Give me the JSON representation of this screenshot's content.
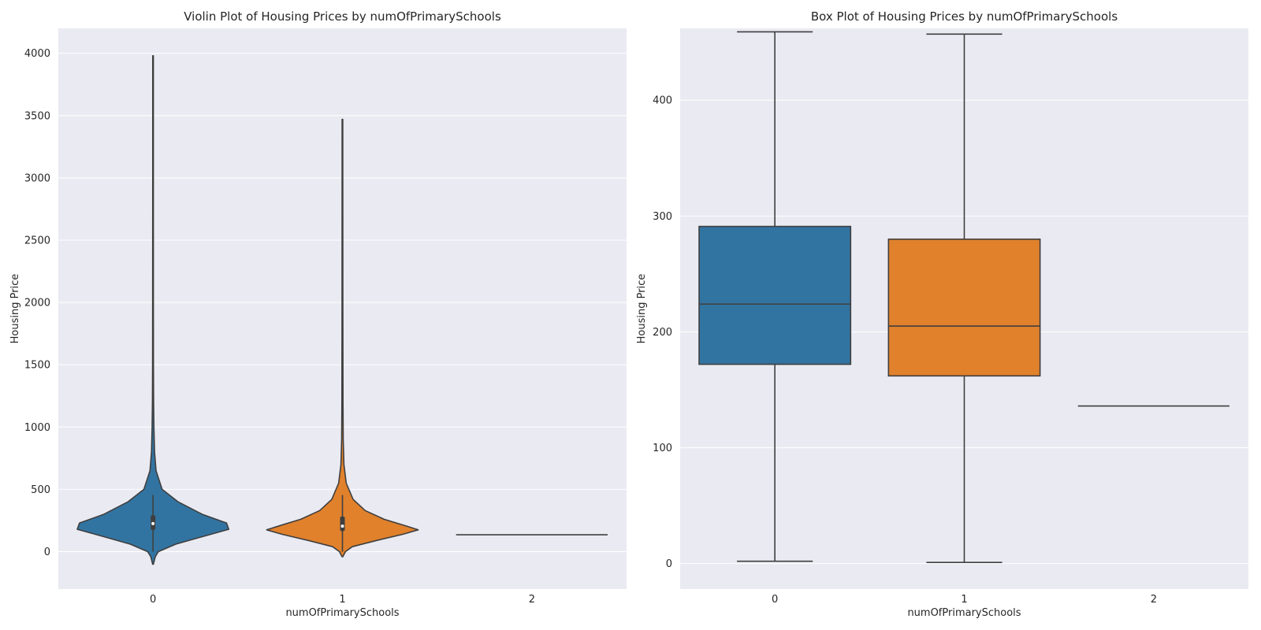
{
  "chart_data": [
    {
      "type": "violin",
      "title": "Violin Plot of Housing Prices by numOfPrimarySchools",
      "xlabel": "numOfPrimarySchools",
      "ylabel": "Housing Price",
      "categories": [
        "0",
        "1",
        "2"
      ],
      "ylim": [
        -300,
        4200
      ],
      "yticks": [
        "0",
        "500",
        "1000",
        "1500",
        "2000",
        "2500",
        "3000",
        "3500",
        "4000"
      ],
      "grid": true,
      "colors": [
        "#3274a1",
        "#e1812c",
        "#3a923a"
      ],
      "violins": [
        {
          "category": "0",
          "min": -100,
          "max": 3980,
          "q1": 175,
          "median": 225,
          "q3": 292,
          "whisker_low": 0,
          "whisker_high": 455,
          "density": [
            [
              -100,
              0.005
            ],
            [
              -40,
              0.03
            ],
            [
              0,
              0.07
            ],
            [
              60,
              0.3
            ],
            [
              120,
              0.65
            ],
            [
              180,
              1.0
            ],
            [
              230,
              0.97
            ],
            [
              300,
              0.65
            ],
            [
              400,
              0.33
            ],
            [
              500,
              0.12
            ],
            [
              650,
              0.04
            ],
            [
              800,
              0.02
            ],
            [
              1000,
              0.012
            ],
            [
              1200,
              0.008
            ],
            [
              1500,
              0.006
            ],
            [
              2000,
              0.005
            ],
            [
              3000,
              0.004
            ],
            [
              3980,
              0.004
            ]
          ]
        },
        {
          "category": "1",
          "min": -40,
          "max": 3470,
          "q1": 165,
          "median": 205,
          "q3": 282,
          "whisker_low": 0,
          "whisker_high": 455,
          "density": [
            [
              -40,
              0.005
            ],
            [
              0,
              0.04
            ],
            [
              40,
              0.13
            ],
            [
              90,
              0.45
            ],
            [
              140,
              0.8
            ],
            [
              175,
              1.0
            ],
            [
              210,
              0.82
            ],
            [
              260,
              0.55
            ],
            [
              330,
              0.3
            ],
            [
              420,
              0.14
            ],
            [
              550,
              0.05
            ],
            [
              700,
              0.02
            ],
            [
              900,
              0.01
            ],
            [
              1200,
              0.007
            ],
            [
              2000,
              0.005
            ],
            [
              3470,
              0.004
            ]
          ]
        },
        {
          "category": "2",
          "single_value": 136
        }
      ]
    },
    {
      "type": "box",
      "title": "Box Plot of Housing Prices by numOfPrimarySchools",
      "xlabel": "numOfPrimarySchools",
      "ylabel": "Housing Price",
      "categories": [
        "0",
        "1",
        "2"
      ],
      "ylim": [
        -22,
        462
      ],
      "yticks": [
        "0",
        "100",
        "200",
        "300",
        "400"
      ],
      "grid": true,
      "colors": [
        "#3274a1",
        "#e1812c",
        "#3a923a"
      ],
      "boxes": [
        {
          "category": "0",
          "whisker_low": 2,
          "q1": 172,
          "median": 224,
          "q3": 291,
          "whisker_high": 459
        },
        {
          "category": "1",
          "whisker_low": 1,
          "q1": 162,
          "median": 205,
          "q3": 280,
          "whisker_high": 457
        },
        {
          "category": "2",
          "whisker_low": 136,
          "q1": 136,
          "median": 136,
          "q3": 136,
          "whisker_high": 136
        }
      ]
    }
  ]
}
